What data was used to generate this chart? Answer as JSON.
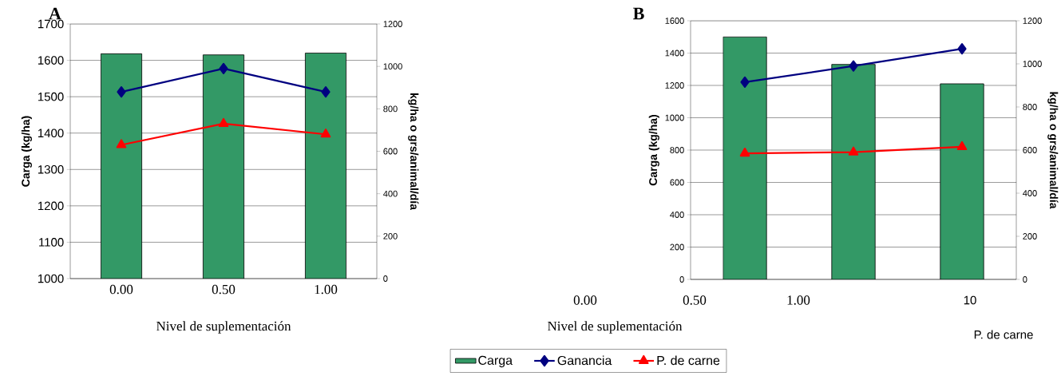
{
  "chart_data": [
    {
      "type": "bar",
      "title": "A",
      "xlabel": "Nivel de suplementación",
      "ylabel": "Carga (kg/ha)",
      "y2label": "kg/ha o grs/animal/día",
      "categories": [
        "0.00",
        "0.50",
        "1.00"
      ],
      "ylim": [
        1000,
        1700
      ],
      "yticks": [
        1000,
        1100,
        1200,
        1300,
        1400,
        1500,
        1600,
        1700
      ],
      "y2lim": [
        0,
        1200
      ],
      "y2ticks": [
        0,
        200,
        400,
        600,
        800,
        1000,
        1200
      ],
      "grid": "y",
      "series": [
        {
          "color": "#339966",
          "values": [
            1618,
            1615,
            1620
          ]
        },
        {
          "type": "line",
          "axis": "y2",
          "color": "#000080",
          "marker": "diamond",
          "values": [
            880,
            990,
            880
          ]
        },
        {
          "type": "line",
          "axis": "y2",
          "color": "#ff0000",
          "marker": "triangle",
          "values": [
            630,
            730,
            680
          ]
        }
      ]
    },
    {
      "type": "bar",
      "title": "B",
      "xlabel": "Nivel de suplementación",
      "ylabel": "Carga (kg/ha)",
      "y2label": "kg/ha o grs/animal/día",
      "categories": [
        null,
        null,
        null
      ],
      "ylim": [
        0,
        1600
      ],
      "yticks": [
        0,
        200,
        400,
        600,
        800,
        1000,
        1200,
        1400,
        1600
      ],
      "y2lim": [
        0,
        1200
      ],
      "y2ticks": [
        0,
        200,
        400,
        600,
        800,
        1000,
        1200
      ],
      "grid": "y",
      "legend": "bottom",
      "annotations": [
        "0.00",
        "0.50",
        "1.00",
        "10",
        "P. de carne"
      ],
      "series": [
        {
          "name": "Carga",
          "color": "#339966",
          "values": [
            1500,
            1330,
            1210
          ]
        },
        {
          "type": "line",
          "axis": "y2",
          "name": "Ganancia",
          "color": "#000080",
          "marker": "diamond",
          "values": [
            915,
            990,
            1070
          ]
        },
        {
          "type": "line",
          "axis": "y2",
          "name": "P. de carne",
          "color": "#ff0000",
          "marker": "triangle",
          "values": [
            585,
            590,
            615
          ]
        }
      ]
    }
  ]
}
